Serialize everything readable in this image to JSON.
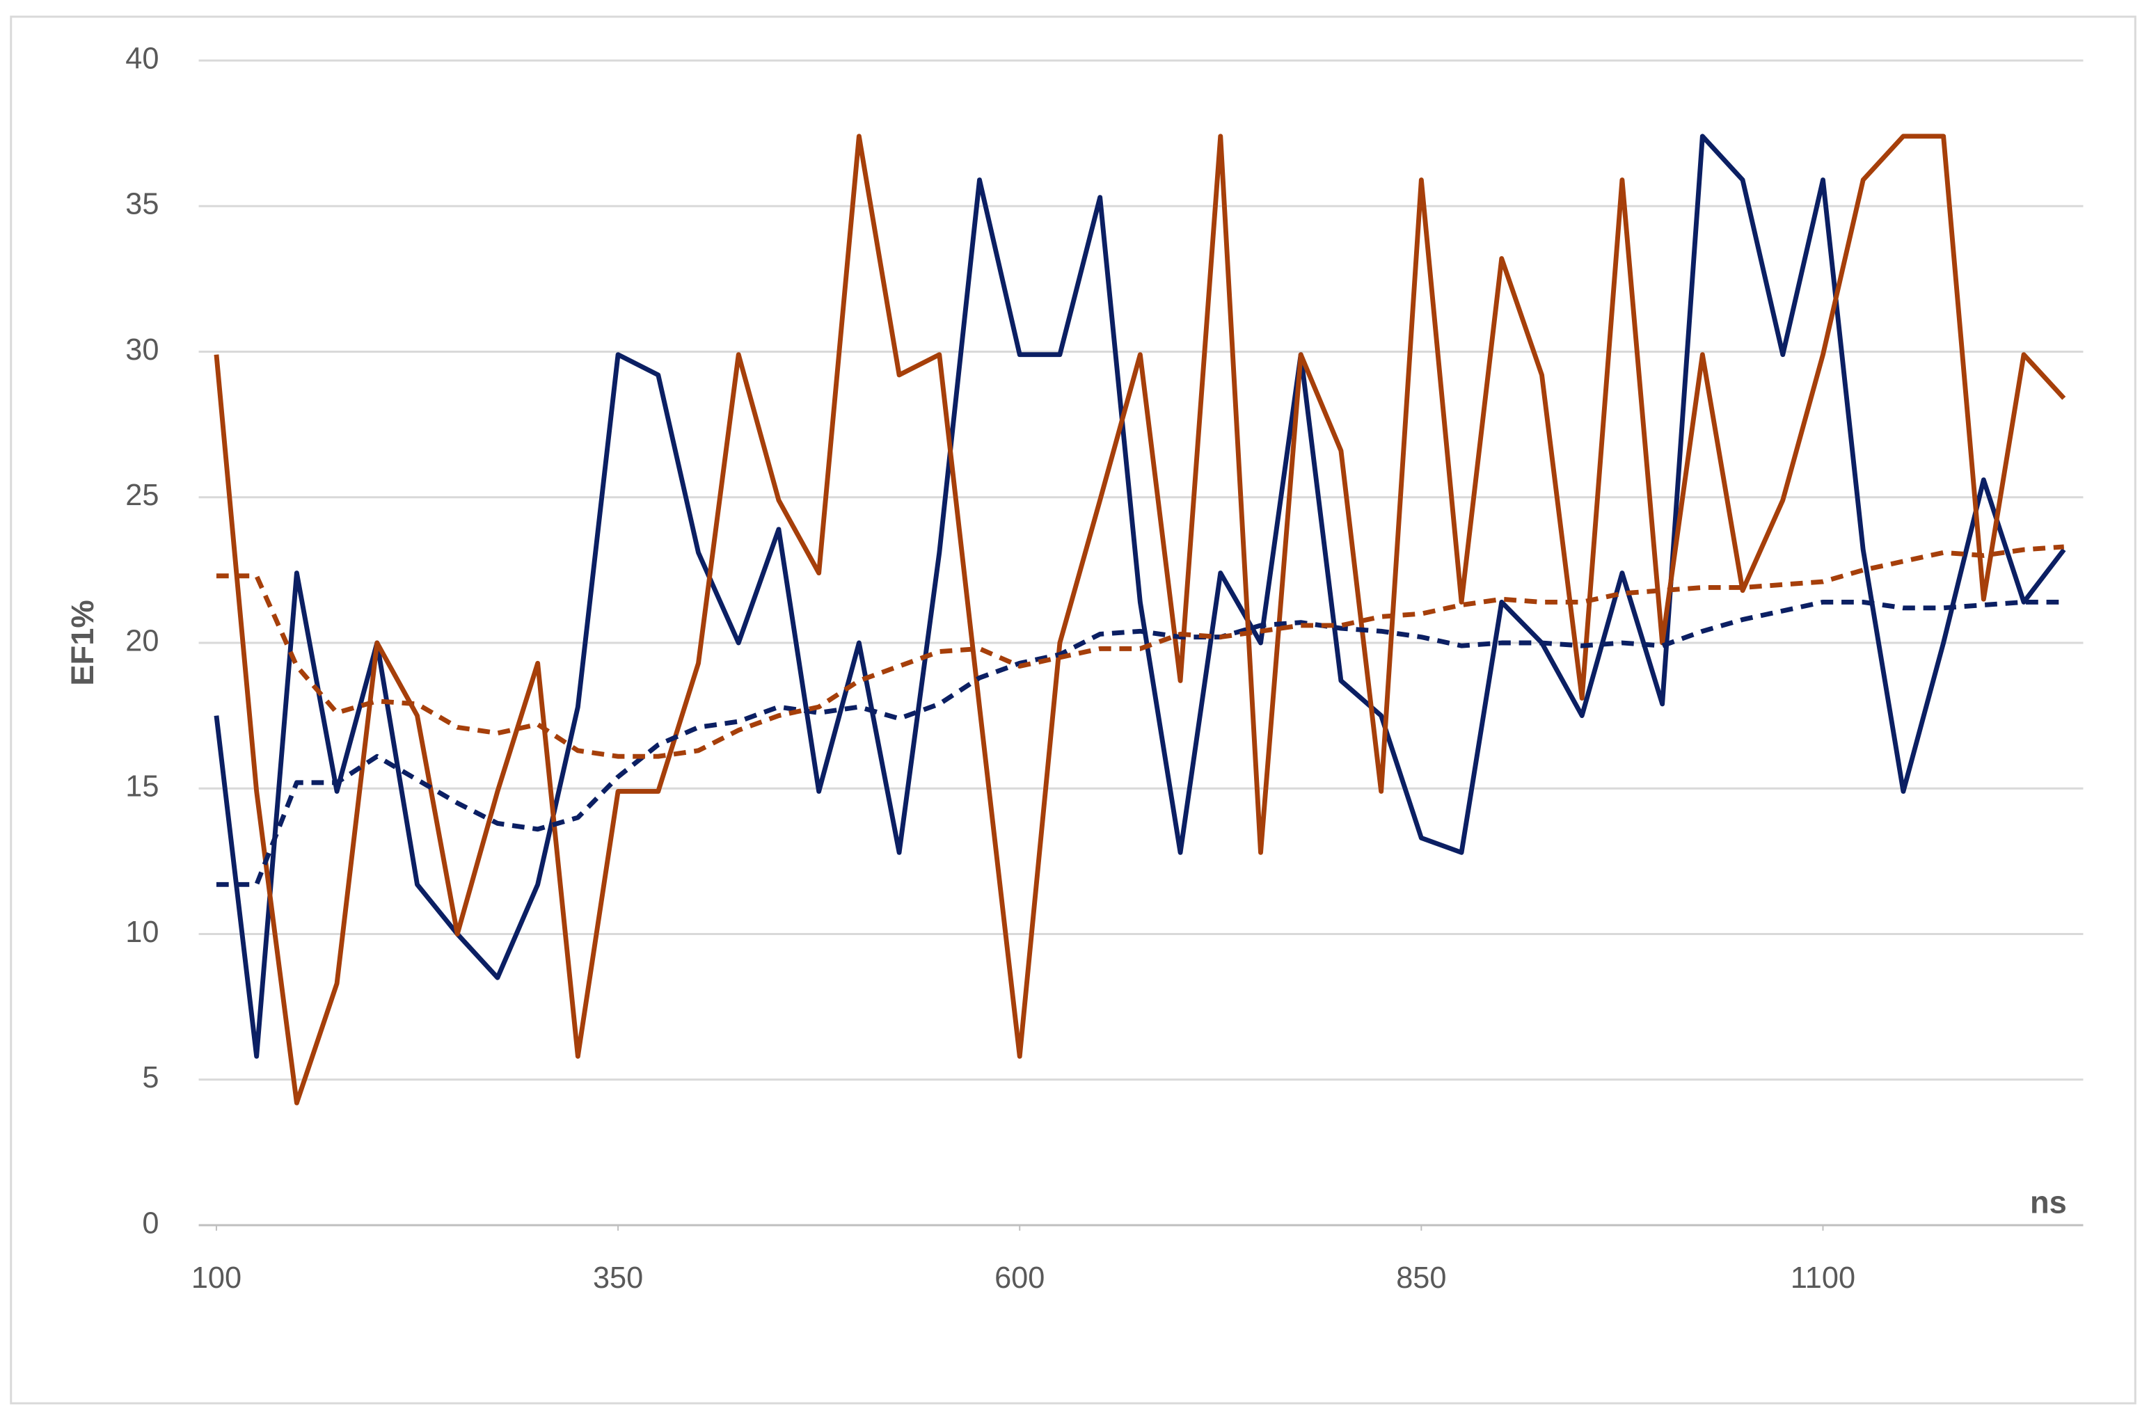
{
  "chart_data": {
    "type": "line",
    "x_label": "ns",
    "y_label": "EF1%",
    "x": [
      100,
      125,
      150,
      175,
      200,
      225,
      250,
      275,
      300,
      325,
      350,
      375,
      400,
      425,
      450,
      475,
      500,
      525,
      550,
      575,
      600,
      625,
      650,
      675,
      700,
      725,
      750,
      775,
      800,
      825,
      850,
      875,
      900,
      925,
      950,
      975,
      1000,
      1025,
      1050,
      1075,
      1100,
      1125,
      1150,
      1175,
      1200,
      1225,
      1250
    ],
    "series": [
      {
        "color": "#0b1f63",
        "dashed": false,
        "values": [
          17.5,
          5.8,
          22.4,
          14.9,
          20.0,
          11.7,
          10.0,
          8.5,
          11.7,
          17.8,
          29.9,
          29.2,
          23.1,
          20.0,
          23.9,
          14.9,
          20.0,
          12.8,
          23.1,
          35.9,
          29.9,
          29.9,
          35.3,
          21.4,
          12.8,
          22.4,
          20.0,
          29.9,
          18.7,
          17.5,
          13.3,
          12.8,
          21.4,
          20.0,
          17.5,
          22.4,
          17.9,
          37.4,
          35.9,
          29.9,
          35.9,
          23.2,
          14.9,
          20.0,
          25.6,
          21.4,
          23.2
        ]
      },
      {
        "color": "#a63f0a",
        "dashed": false,
        "values": [
          29.9,
          14.9,
          4.2,
          8.3,
          20.0,
          17.5,
          10.0,
          14.9,
          19.3,
          5.8,
          14.9,
          14.9,
          19.3,
          29.9,
          24.9,
          22.4,
          37.4,
          29.2,
          29.9,
          17.8,
          5.8,
          20.0,
          24.9,
          29.9,
          18.7,
          37.4,
          12.8,
          29.9,
          26.6,
          14.9,
          35.9,
          21.4,
          33.2,
          29.2,
          18.1,
          35.9,
          20.0,
          29.9,
          21.8,
          24.9,
          29.9,
          35.9,
          37.4,
          37.4,
          21.5,
          29.9,
          28.4
        ]
      },
      {
        "color": "#0b1f63",
        "dashed": true,
        "values": [
          11.7,
          11.7,
          15.2,
          15.2,
          16.1,
          15.3,
          14.5,
          13.8,
          13.6,
          14.0,
          15.4,
          16.5,
          17.1,
          17.3,
          17.8,
          17.6,
          17.8,
          17.4,
          17.9,
          18.8,
          19.3,
          19.6,
          20.3,
          20.4,
          20.2,
          20.2,
          20.6,
          20.7,
          20.5,
          20.4,
          20.2,
          19.9,
          20.0,
          20.0,
          19.9,
          20.0,
          19.9,
          20.4,
          20.8,
          21.1,
          21.4,
          21.4,
          21.2,
          21.2,
          21.3,
          21.4,
          21.4
        ]
      },
      {
        "color": "#a63f0a",
        "dashed": true,
        "values": [
          22.3,
          22.3,
          19.2,
          17.6,
          18.0,
          17.9,
          17.1,
          16.9,
          17.2,
          16.3,
          16.1,
          16.1,
          16.3,
          17.0,
          17.5,
          17.8,
          18.7,
          19.2,
          19.7,
          19.8,
          19.2,
          19.5,
          19.8,
          19.8,
          20.3,
          20.2,
          20.4,
          20.6,
          20.6,
          20.9,
          21.0,
          21.3,
          21.5,
          21.4,
          21.4,
          21.7,
          21.8,
          21.9,
          21.9,
          22.0,
          22.1,
          22.5,
          22.8,
          23.1,
          23.0,
          23.2,
          23.3
        ]
      }
    ],
    "xlim": [
      89,
      1262
    ],
    "xticks": [
      100,
      350,
      600,
      850,
      1100
    ],
    "ylim": [
      0,
      40
    ],
    "yticks": [
      0,
      5,
      10,
      15,
      20,
      25,
      30,
      35,
      40
    ],
    "grid": true
  }
}
